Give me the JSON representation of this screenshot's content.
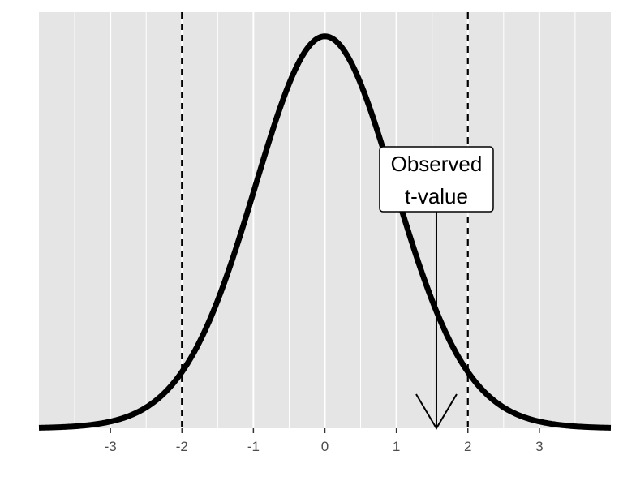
{
  "chart_data": {
    "type": "line",
    "title": "",
    "xlabel": "",
    "ylabel": "",
    "xlim": [
      -4,
      4
    ],
    "ylim": [
      0,
      0.42
    ],
    "x_ticks": [
      -3,
      -2,
      -1,
      0,
      1,
      2,
      3
    ],
    "x_tick_labels": [
      "-3",
      "-2",
      "-1",
      "0",
      "1",
      "2",
      "3"
    ],
    "grid": true,
    "legend": "none",
    "series": [
      {
        "distribution": "t",
        "df": 30,
        "x_range": [
          -4,
          4
        ]
      }
    ],
    "critical_values": [
      -2,
      2
    ],
    "observed_t": 1.56,
    "annotation": {
      "lines": [
        "Observed",
        "t-value"
      ],
      "x": 1.56
    },
    "colors": {
      "panel": "#e5e5e5",
      "grid": "#ffffff",
      "curve": "#000000",
      "tick_text": "#4d4d4d"
    }
  }
}
